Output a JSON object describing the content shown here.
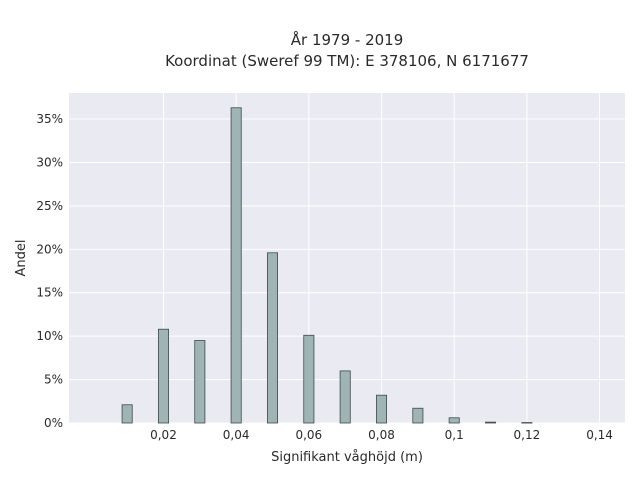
{
  "chart_data": {
    "type": "bar",
    "title_line1": "År 1979 - 2019",
    "title_line2": "Koordinat (Sweref 99 TM): E 378106, N 6171677",
    "xlabel": "Signifikant våghöjd (m)",
    "ylabel": "Andel",
    "x": [
      0.01,
      0.02,
      0.03,
      0.04,
      0.05,
      0.06,
      0.07,
      0.08,
      0.09,
      0.1,
      0.11,
      0.12
    ],
    "values": [
      2.1,
      10.8,
      9.5,
      36.3,
      19.6,
      10.1,
      6.0,
      3.2,
      1.7,
      0.6,
      0.1,
      0.05
    ],
    "xlim": [
      -0.006,
      0.147
    ],
    "ylim": [
      0,
      38
    ],
    "xticks": [
      0.02,
      0.04,
      0.06,
      0.08,
      0.1,
      0.12,
      0.14
    ],
    "xtick_labels": [
      "0,02",
      "0,04",
      "0,06",
      "0,08",
      "0,1",
      "0,12",
      "0,14"
    ],
    "yticks": [
      0,
      5,
      10,
      15,
      20,
      25,
      30,
      35
    ],
    "ytick_labels": [
      "0%",
      "5%",
      "10%",
      "15%",
      "20%",
      "25%",
      "30%",
      "35%"
    ],
    "grid": true,
    "colors": {
      "bar": "#9fb4b4",
      "bar_edge": "#3d4a4a",
      "plot_bg": "#eaeaf2"
    }
  }
}
